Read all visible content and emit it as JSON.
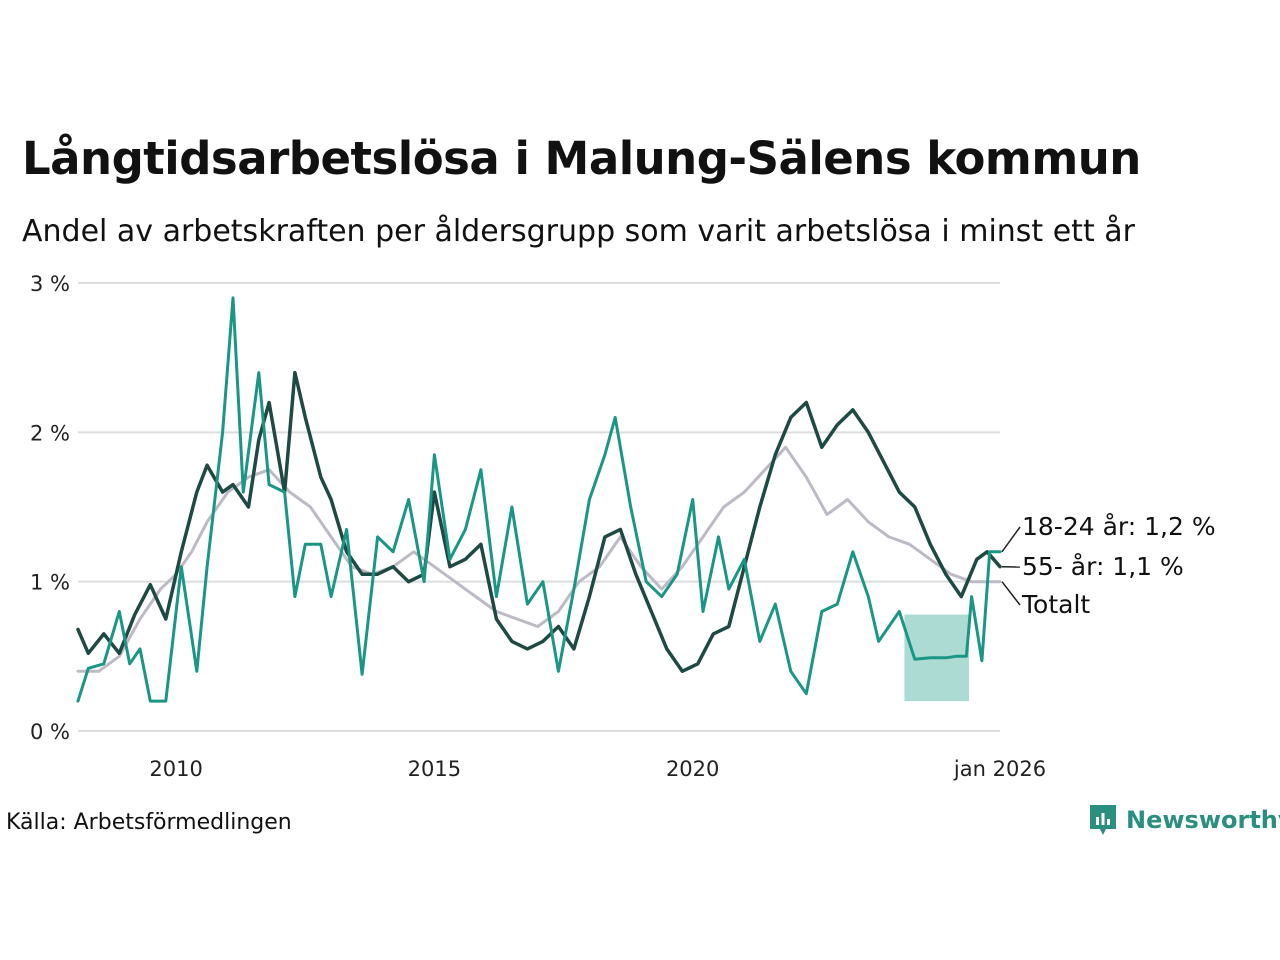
{
  "title": "Långtidsarbetslösa i Malung-Sälens kommun",
  "subtitle": "Andel av arbetskraften per åldersgrupp som varit arbetslösa i minst ett år",
  "source": "Källa: Arbetsförmedlingen",
  "logo": {
    "name": "Newsworthy",
    "icon": "newsworthy-logo-icon"
  },
  "colors": {
    "young": "#1a9685",
    "older": "#1f4a44",
    "total": "#bdbac5",
    "band": "#a6d9d1",
    "grid": "#dddddd"
  },
  "chart_data": {
    "type": "line",
    "title": "Långtidsarbetslösa i Malung-Sälens kommun",
    "xlabel": "",
    "ylabel": "",
    "xlim": [
      2008.1,
      2025.95
    ],
    "ylim": [
      0,
      3
    ],
    "y_ticks": [
      {
        "value": 0,
        "label": "0 %"
      },
      {
        "value": 1,
        "label": "1 %"
      },
      {
        "value": 2,
        "label": "2 %"
      },
      {
        "value": 3,
        "label": "3 %"
      }
    ],
    "x_ticks": [
      {
        "value": 2010,
        "label": "2010"
      },
      {
        "value": 2015,
        "label": "2015"
      },
      {
        "value": 2020,
        "label": "2020"
      },
      {
        "value": 2025.95,
        "label": "jan 2026"
      }
    ],
    "series": [
      {
        "name": "Totalt",
        "key": "total",
        "end_label": "Totalt",
        "points": [
          [
            2008.1,
            0.4
          ],
          [
            2008.5,
            0.4
          ],
          [
            2008.9,
            0.5
          ],
          [
            2009.3,
            0.75
          ],
          [
            2009.7,
            0.95
          ],
          [
            2010.0,
            1.05
          ],
          [
            2010.3,
            1.2
          ],
          [
            2010.6,
            1.4
          ],
          [
            2011.0,
            1.6
          ],
          [
            2011.4,
            1.7
          ],
          [
            2011.8,
            1.75
          ],
          [
            2012.2,
            1.6
          ],
          [
            2012.6,
            1.5
          ],
          [
            2013.0,
            1.3
          ],
          [
            2013.4,
            1.1
          ],
          [
            2013.8,
            1.05
          ],
          [
            2014.2,
            1.1
          ],
          [
            2014.6,
            1.2
          ],
          [
            2015.0,
            1.1
          ],
          [
            2015.4,
            1.0
          ],
          [
            2015.8,
            0.9
          ],
          [
            2016.2,
            0.8
          ],
          [
            2016.6,
            0.75
          ],
          [
            2017.0,
            0.7
          ],
          [
            2017.4,
            0.8
          ],
          [
            2017.8,
            1.0
          ],
          [
            2018.2,
            1.1
          ],
          [
            2018.6,
            1.3
          ],
          [
            2019.0,
            1.1
          ],
          [
            2019.4,
            0.95
          ],
          [
            2019.8,
            1.1
          ],
          [
            2020.2,
            1.3
          ],
          [
            2020.6,
            1.5
          ],
          [
            2021.0,
            1.6
          ],
          [
            2021.4,
            1.75
          ],
          [
            2021.8,
            1.9
          ],
          [
            2022.2,
            1.7
          ],
          [
            2022.6,
            1.45
          ],
          [
            2023.0,
            1.55
          ],
          [
            2023.4,
            1.4
          ],
          [
            2023.8,
            1.3
          ],
          [
            2024.2,
            1.25
          ],
          [
            2024.6,
            1.15
          ],
          [
            2025.0,
            1.05
          ],
          [
            2025.4,
            1.0
          ],
          [
            2025.95,
            1.0
          ]
        ],
        "last_value": 1.0
      },
      {
        "name": "55- år",
        "key": "older",
        "end_label": "55- år: 1,1 %",
        "points": [
          [
            2008.1,
            0.68
          ],
          [
            2008.3,
            0.52
          ],
          [
            2008.6,
            0.65
          ],
          [
            2008.9,
            0.52
          ],
          [
            2009.2,
            0.78
          ],
          [
            2009.5,
            0.98
          ],
          [
            2009.8,
            0.75
          ],
          [
            2010.1,
            1.2
          ],
          [
            2010.4,
            1.6
          ],
          [
            2010.6,
            1.78
          ],
          [
            2010.9,
            1.6
          ],
          [
            2011.1,
            1.65
          ],
          [
            2011.4,
            1.5
          ],
          [
            2011.6,
            1.95
          ],
          [
            2011.8,
            2.2
          ],
          [
            2012.1,
            1.6
          ],
          [
            2012.3,
            2.4
          ],
          [
            2012.5,
            2.1
          ],
          [
            2012.8,
            1.7
          ],
          [
            2013.0,
            1.55
          ],
          [
            2013.3,
            1.2
          ],
          [
            2013.6,
            1.05
          ],
          [
            2013.9,
            1.05
          ],
          [
            2014.2,
            1.1
          ],
          [
            2014.5,
            1.0
          ],
          [
            2014.8,
            1.05
          ],
          [
            2015.0,
            1.6
          ],
          [
            2015.3,
            1.1
          ],
          [
            2015.6,
            1.15
          ],
          [
            2015.9,
            1.25
          ],
          [
            2016.2,
            0.75
          ],
          [
            2016.5,
            0.6
          ],
          [
            2016.8,
            0.55
          ],
          [
            2017.1,
            0.6
          ],
          [
            2017.4,
            0.7
          ],
          [
            2017.7,
            0.55
          ],
          [
            2018.0,
            0.9
          ],
          [
            2018.3,
            1.3
          ],
          [
            2018.6,
            1.35
          ],
          [
            2018.9,
            1.05
          ],
          [
            2019.2,
            0.8
          ],
          [
            2019.5,
            0.55
          ],
          [
            2019.8,
            0.4
          ],
          [
            2020.1,
            0.45
          ],
          [
            2020.4,
            0.65
          ],
          [
            2020.7,
            0.7
          ],
          [
            2021.0,
            1.1
          ],
          [
            2021.3,
            1.5
          ],
          [
            2021.6,
            1.85
          ],
          [
            2021.9,
            2.1
          ],
          [
            2022.2,
            2.2
          ],
          [
            2022.5,
            1.9
          ],
          [
            2022.8,
            2.05
          ],
          [
            2023.1,
            2.15
          ],
          [
            2023.4,
            2.0
          ],
          [
            2023.7,
            1.8
          ],
          [
            2024.0,
            1.6
          ],
          [
            2024.3,
            1.5
          ],
          [
            2024.6,
            1.25
          ],
          [
            2024.9,
            1.05
          ],
          [
            2025.2,
            0.9
          ],
          [
            2025.5,
            1.15
          ],
          [
            2025.7,
            1.2
          ],
          [
            2025.95,
            1.1
          ]
        ],
        "last_value": 1.1
      },
      {
        "name": "18-24 år",
        "key": "young",
        "end_label": "18-24 år: 1,2 %",
        "points": [
          [
            2008.1,
            0.2
          ],
          [
            2008.3,
            0.42
          ],
          [
            2008.6,
            0.45
          ],
          [
            2008.9,
            0.8
          ],
          [
            2009.1,
            0.45
          ],
          [
            2009.3,
            0.55
          ],
          [
            2009.5,
            0.2
          ],
          [
            2009.8,
            0.2
          ],
          [
            2010.1,
            1.1
          ],
          [
            2010.4,
            0.4
          ],
          [
            2010.6,
            1.1
          ],
          [
            2010.9,
            2.0
          ],
          [
            2011.1,
            2.9
          ],
          [
            2011.3,
            1.6
          ],
          [
            2011.6,
            2.4
          ],
          [
            2011.8,
            1.65
          ],
          [
            2012.1,
            1.6
          ],
          [
            2012.3,
            0.9
          ],
          [
            2012.5,
            1.25
          ],
          [
            2012.8,
            1.25
          ],
          [
            2013.0,
            0.9
          ],
          [
            2013.3,
            1.35
          ],
          [
            2013.6,
            0.38
          ],
          [
            2013.9,
            1.3
          ],
          [
            2014.2,
            1.2
          ],
          [
            2014.5,
            1.55
          ],
          [
            2014.8,
            1.0
          ],
          [
            2015.0,
            1.85
          ],
          [
            2015.3,
            1.15
          ],
          [
            2015.6,
            1.35
          ],
          [
            2015.9,
            1.75
          ],
          [
            2016.2,
            0.9
          ],
          [
            2016.5,
            1.5
          ],
          [
            2016.8,
            0.85
          ],
          [
            2017.1,
            1.0
          ],
          [
            2017.4,
            0.4
          ],
          [
            2017.7,
            0.95
          ],
          [
            2018.0,
            1.55
          ],
          [
            2018.3,
            1.85
          ],
          [
            2018.5,
            2.1
          ],
          [
            2018.8,
            1.5
          ],
          [
            2019.1,
            1.0
          ],
          [
            2019.4,
            0.9
          ],
          [
            2019.7,
            1.05
          ],
          [
            2020.0,
            1.55
          ],
          [
            2020.2,
            0.8
          ],
          [
            2020.5,
            1.3
          ],
          [
            2020.7,
            0.95
          ],
          [
            2021.0,
            1.15
          ],
          [
            2021.3,
            0.6
          ],
          [
            2021.6,
            0.85
          ],
          [
            2021.9,
            0.4
          ],
          [
            2022.2,
            0.25
          ],
          [
            2022.5,
            0.8
          ],
          [
            2022.8,
            0.85
          ],
          [
            2023.1,
            1.2
          ],
          [
            2023.4,
            0.9
          ],
          [
            2023.6,
            0.6
          ],
          [
            2023.9,
            0.75
          ],
          [
            2024.0,
            0.8
          ],
          [
            2024.3,
            0.48
          ],
          [
            2024.6,
            0.49
          ],
          [
            2024.9,
            0.49
          ],
          [
            2025.1,
            0.5
          ],
          [
            2025.3,
            0.5
          ],
          [
            2025.4,
            0.9
          ],
          [
            2025.6,
            0.47
          ],
          [
            2025.75,
            1.2
          ],
          [
            2025.95,
            1.2
          ]
        ],
        "last_value": 1.2
      }
    ],
    "uncertainty_band": {
      "series": "18-24 år",
      "x": [
        2024.1,
        2025.35
      ],
      "y": [
        0.2,
        0.78
      ]
    }
  }
}
